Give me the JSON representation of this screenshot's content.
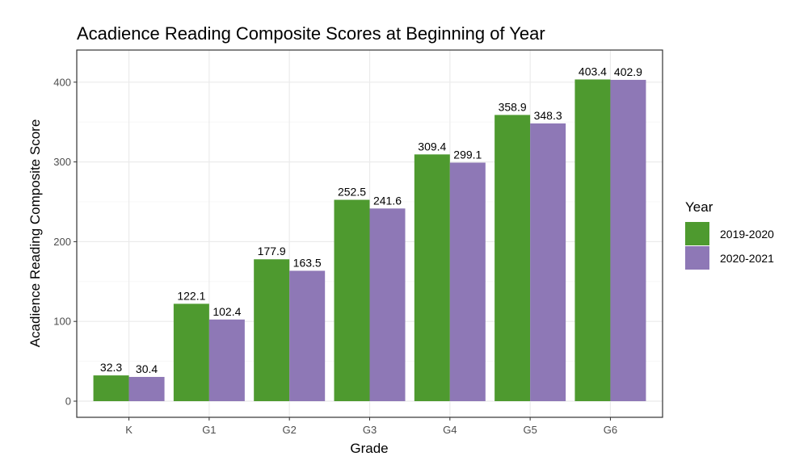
{
  "chart_data": {
    "type": "bar",
    "title": "Acadience Reading Composite Scores at Beginning of Year",
    "xlabel": "Grade",
    "ylabel": "Acadience Reading Composite Score",
    "categories": [
      "K",
      "G1",
      "G2",
      "G3",
      "G4",
      "G5",
      "G6"
    ],
    "series": [
      {
        "name": "2019-2020",
        "color": "#4e9a2f",
        "values": [
          32.3,
          122.1,
          177.9,
          252.5,
          309.4,
          358.9,
          403.4
        ]
      },
      {
        "name": "2020-2021",
        "color": "#8e78b6",
        "values": [
          30.4,
          102.4,
          163.5,
          241.6,
          299.1,
          348.3,
          402.9
        ]
      }
    ],
    "ylim": [
      0,
      440
    ],
    "yticks": [
      0,
      100,
      200,
      300,
      400
    ],
    "legend_title": "Year",
    "legend_position": "right",
    "grid": true
  }
}
